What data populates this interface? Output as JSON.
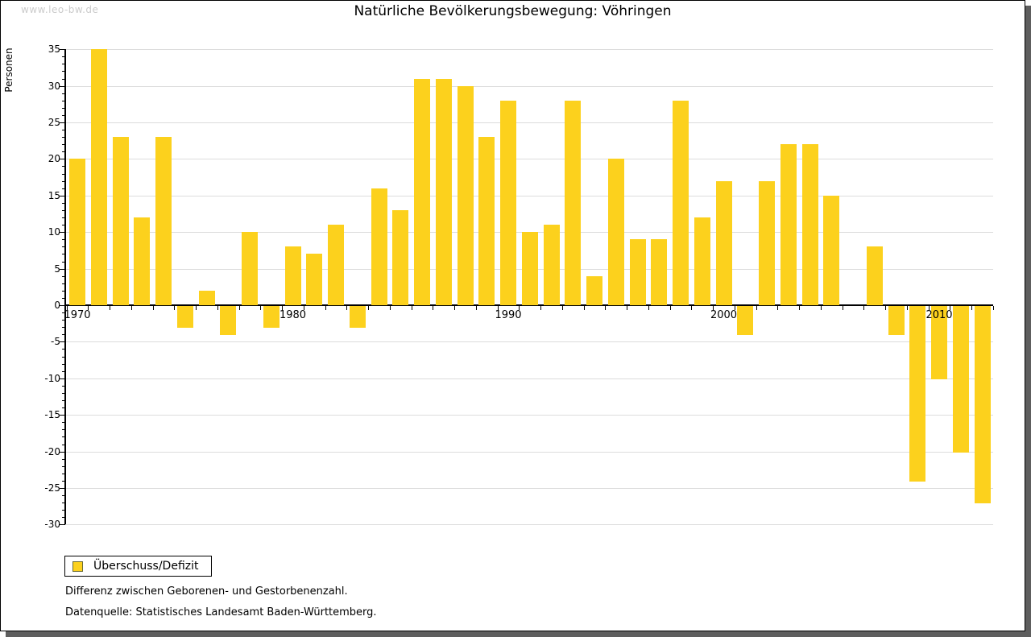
{
  "window": {
    "watermark": "www.leo-bw.de"
  },
  "chart_data": {
    "type": "bar",
    "title": "Natürliche Bevölkerungsbewegung: Vöhringen",
    "ylabel": "Personen",
    "series_name": "Überschuss/Defizit",
    "ylim": [
      -30,
      35
    ],
    "ytick_step": 5,
    "grid": true,
    "legend_position": "bottom-left",
    "categories": [
      1970,
      1971,
      1972,
      1973,
      1974,
      1975,
      1976,
      1977,
      1978,
      1979,
      1980,
      1981,
      1982,
      1983,
      1984,
      1985,
      1986,
      1987,
      1988,
      1989,
      1990,
      1991,
      1992,
      1993,
      1994,
      1995,
      1996,
      1997,
      1998,
      1999,
      2000,
      2001,
      2002,
      2003,
      2004,
      2005,
      2006,
      2007,
      2008,
      2009,
      2010,
      2011,
      2012
    ],
    "values": [
      20,
      35,
      23,
      12,
      23,
      -3,
      2,
      -4,
      10,
      -3,
      8,
      7,
      11,
      -3,
      16,
      13,
      31,
      31,
      30,
      23,
      28,
      10,
      11,
      28,
      4,
      20,
      9,
      9,
      28,
      12,
      17,
      -4,
      17,
      22,
      22,
      15,
      0,
      8,
      -4,
      -24,
      -10,
      -20,
      -27
    ],
    "xtick_labels": [
      1970,
      1980,
      1990,
      2000,
      2010
    ],
    "bar_color": "#FCD11D"
  },
  "legend": {
    "label": "Überschuss/Defizit",
    "swatch_color": "#FCD11D",
    "swatch_border": "#6B6B33"
  },
  "footer": {
    "line1": "Differenz zwischen Geborenen- und Gestorbenenzahl.",
    "line2": "Datenquelle: Statistisches Landesamt Baden-Württemberg."
  },
  "colors": {
    "axis": "#000000",
    "grid": "#DCDCDC",
    "shadow": "#5E5E5E",
    "watermark": "#CBCBCB",
    "text": "#000000"
  }
}
